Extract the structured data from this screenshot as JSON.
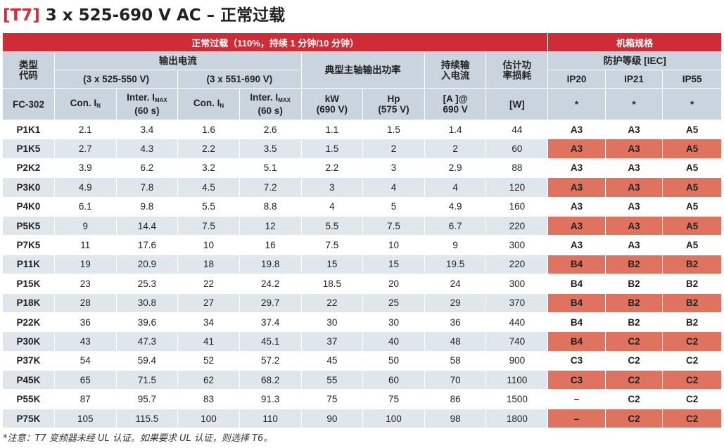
{
  "title": {
    "code": "[T7]",
    "text": "3 x 525-690 V AC – 正常过载"
  },
  "header": {
    "overload": "正常过载（110%，持续 1 分钟/10 分钟）",
    "enclosure": "机箱规格",
    "type_code": "类型\n代码",
    "output_current": "输出电流",
    "range1": "(3 x 525-550 V)",
    "range2": "(3 x 551-690 V)",
    "typical_shaft": "典型主轴输出功率",
    "continuous_input": "持续输\n入电流",
    "est_loss": "估计功\n率损耗",
    "protection": "防护等级 [IEC]",
    "ip20": "IP20",
    "ip21": "IP21",
    "ip55": "IP55",
    "fc": "FC-302",
    "con": "Con. I",
    "con_sub": "N",
    "inter": "Inter. I",
    "inter_sub": "MAX",
    "inter_60": "(60 s)",
    "kw": "kW",
    "kw_unit": "(690 V)",
    "hp": "Hp",
    "hp_unit": "(575 V)",
    "amp": "[A ]@",
    "amp_unit": "690 V",
    "watt": "[W]",
    "star1": "*",
    "star2": "*",
    "star3": "*"
  },
  "rows": [
    {
      "model": "P1K1",
      "c1": "2.1",
      "i1": "3.4",
      "c2": "1.6",
      "i2": "2.6",
      "kw": "1.1",
      "hp": "1.5",
      "amp": "1.4",
      "w": "44",
      "ip20": "A3",
      "ip21": "A3",
      "ip55": "A5"
    },
    {
      "model": "P1K5",
      "c1": "2.7",
      "i1": "4.3",
      "c2": "2.2",
      "i2": "3.5",
      "kw": "1.5",
      "hp": "2",
      "amp": "2",
      "w": "60",
      "ip20": "A3",
      "ip21": "A3",
      "ip55": "A5"
    },
    {
      "model": "P2K2",
      "c1": "3.9",
      "i1": "6.2",
      "c2": "3.2",
      "i2": "5.1",
      "kw": "2.2",
      "hp": "3",
      "amp": "2.9",
      "w": "88",
      "ip20": "A3",
      "ip21": "A3",
      "ip55": "A5"
    },
    {
      "model": "P3K0",
      "c1": "4.9",
      "i1": "7.8",
      "c2": "4.5",
      "i2": "7.2",
      "kw": "3",
      "hp": "4",
      "amp": "4",
      "w": "120",
      "ip20": "A3",
      "ip21": "A3",
      "ip55": "A5"
    },
    {
      "model": "P4K0",
      "c1": "6.1",
      "i1": "9.8",
      "c2": "5.5",
      "i2": "8.8",
      "kw": "4",
      "hp": "5",
      "amp": "4.9",
      "w": "160",
      "ip20": "A3",
      "ip21": "A3",
      "ip55": "A5"
    },
    {
      "model": "P5K5",
      "c1": "9",
      "i1": "14.4",
      "c2": "7.5",
      "i2": "12",
      "kw": "5.5",
      "hp": "7.5",
      "amp": "6.7",
      "w": "220",
      "ip20": "A3",
      "ip21": "A3",
      "ip55": "A5"
    },
    {
      "model": "P7K5",
      "c1": "11",
      "i1": "17.6",
      "c2": "10",
      "i2": "16",
      "kw": "7.5",
      "hp": "10",
      "amp": "9",
      "w": "300",
      "ip20": "A3",
      "ip21": "A3",
      "ip55": "A5"
    },
    {
      "model": "P11K",
      "c1": "19",
      "i1": "20.9",
      "c2": "18",
      "i2": "19.8",
      "kw": "15",
      "hp": "15",
      "amp": "19.5",
      "w": "220",
      "ip20": "B4",
      "ip21": "B2",
      "ip55": "B2"
    },
    {
      "model": "P15K",
      "c1": "23",
      "i1": "25.3",
      "c2": "22",
      "i2": "24.2",
      "kw": "18.5",
      "hp": "20",
      "amp": "24",
      "w": "300",
      "ip20": "B4",
      "ip21": "B2",
      "ip55": "B2"
    },
    {
      "model": "P18K",
      "c1": "28",
      "i1": "30.8",
      "c2": "27",
      "i2": "29.7",
      "kw": "22",
      "hp": "25",
      "amp": "29",
      "w": "370",
      "ip20": "B4",
      "ip21": "B2",
      "ip55": "B2"
    },
    {
      "model": "P22K",
      "c1": "36",
      "i1": "39.6",
      "c2": "34",
      "i2": "37.4",
      "kw": "30",
      "hp": "30",
      "amp": "36",
      "w": "440",
      "ip20": "B4",
      "ip21": "B2",
      "ip55": "B2"
    },
    {
      "model": "P30K",
      "c1": "43",
      "i1": "47.3",
      "c2": "41",
      "i2": "45.1",
      "kw": "37",
      "hp": "40",
      "amp": "48",
      "w": "740",
      "ip20": "B4",
      "ip21": "C2",
      "ip55": "C2"
    },
    {
      "model": "P37K",
      "c1": "54",
      "i1": "59.4",
      "c2": "52",
      "i2": "57.2",
      "kw": "45",
      "hp": "50",
      "amp": "58",
      "w": "900",
      "ip20": "C3",
      "ip21": "C2",
      "ip55": "C2"
    },
    {
      "model": "P45K",
      "c1": "65",
      "i1": "71.5",
      "c2": "62",
      "i2": "68.2",
      "kw": "55",
      "hp": "60",
      "amp": "70",
      "w": "1100",
      "ip20": "C3",
      "ip21": "C2",
      "ip55": "C2"
    },
    {
      "model": "P55K",
      "c1": "87",
      "i1": "95.7",
      "c2": "83",
      "i2": "91.3",
      "kw": "75",
      "hp": "75",
      "amp": "86",
      "w": "1500",
      "ip20": "–",
      "ip21": "C2",
      "ip55": "C2"
    },
    {
      "model": "P75K",
      "c1": "105",
      "i1": "115.5",
      "c2": "100",
      "i2": "110",
      "kw": "90",
      "hp": "100",
      "amp": "98",
      "w": "1800",
      "ip20": "–",
      "ip21": "C2",
      "ip55": "C2"
    }
  ],
  "note": "*注意：T7 变频器未经 UL 认证。如果要求 UL 认证，则选择 T6。",
  "colors": {
    "red_header": "#cc2d36",
    "gray_header": "#c9d4df",
    "stripe": "#dfe6ec",
    "enclosure_highlight": "#e0735f",
    "title_code": "#d32f3a"
  }
}
